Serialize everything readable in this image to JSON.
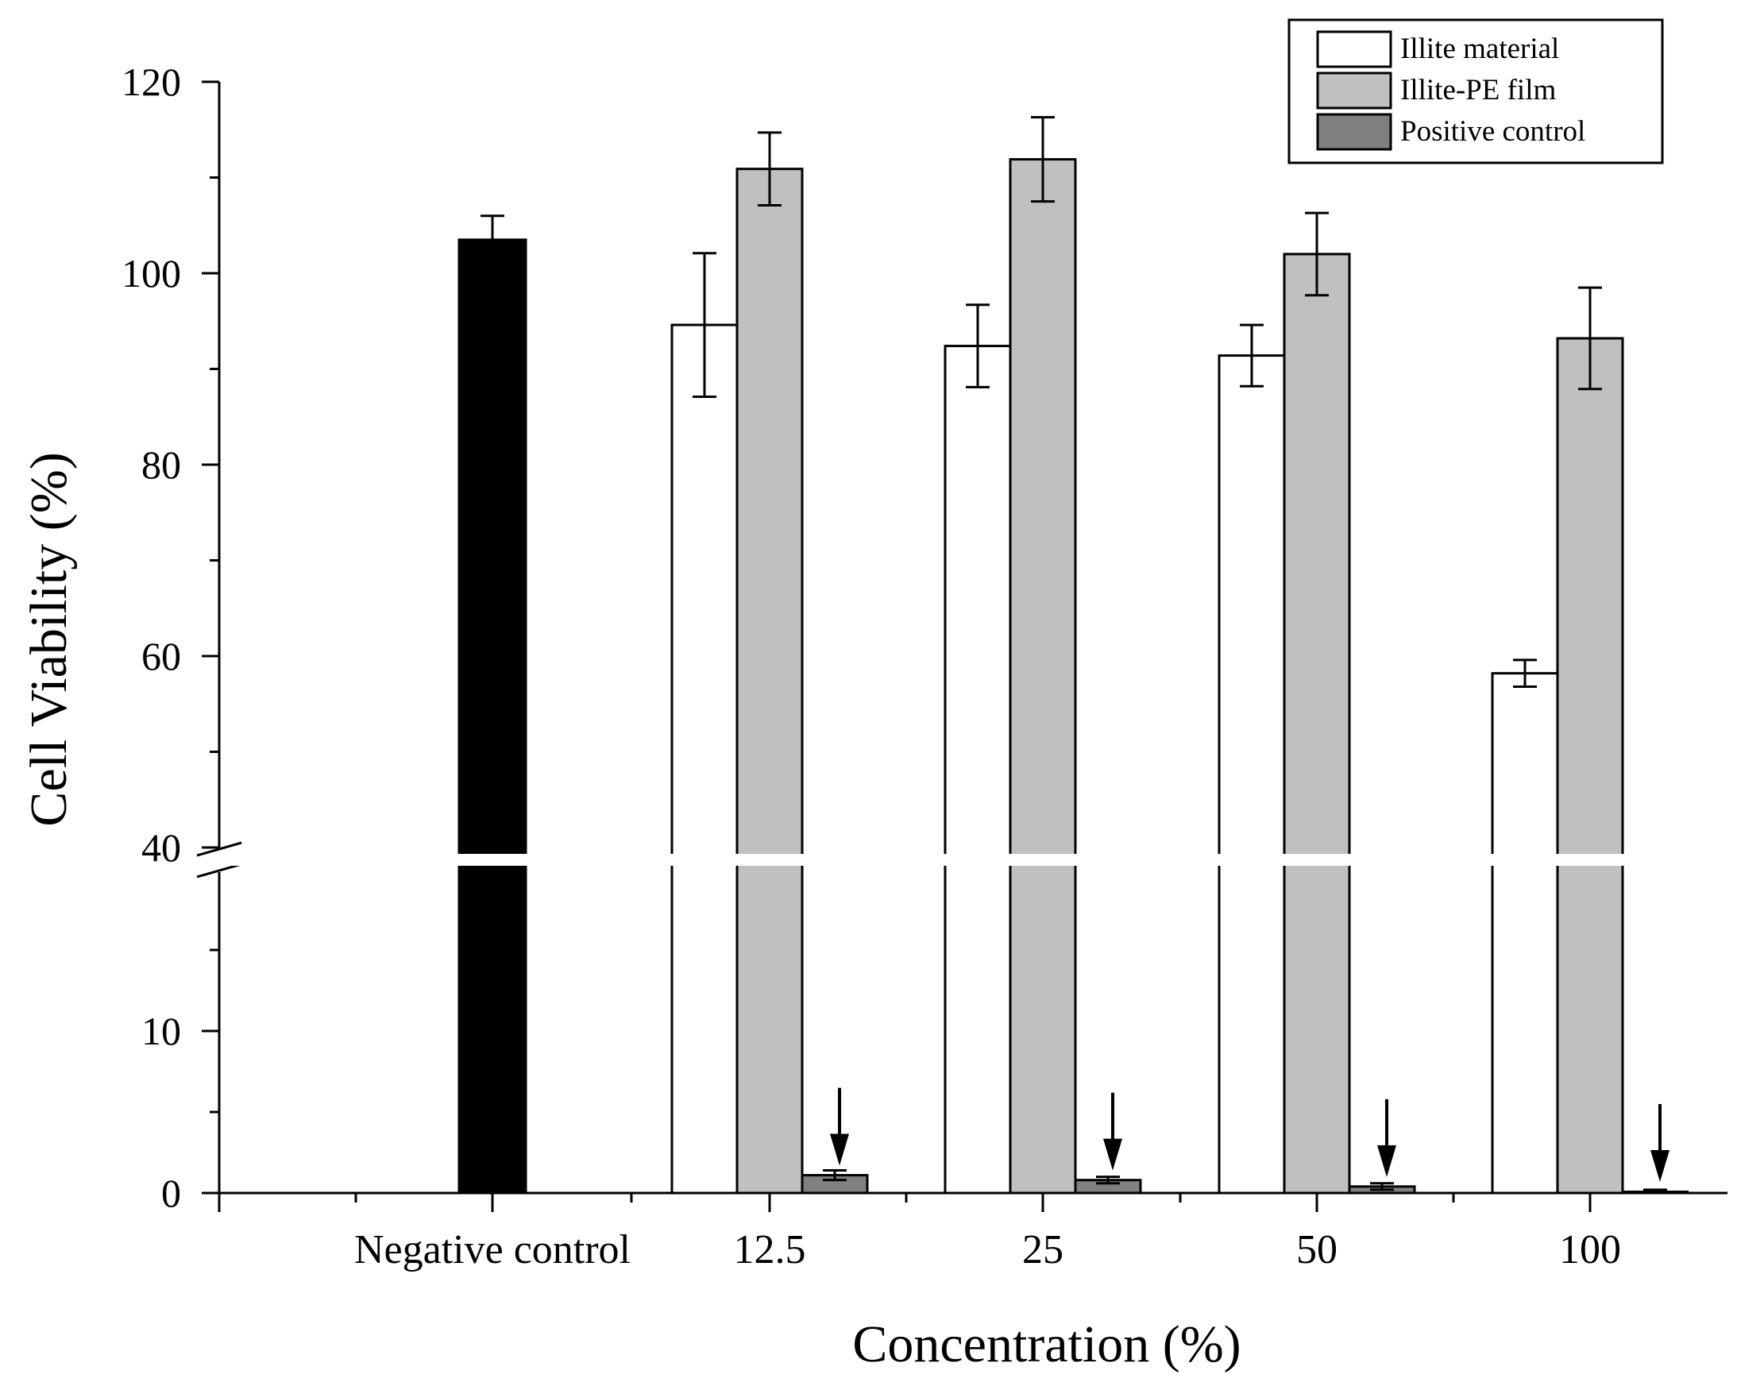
{
  "chart_data": {
    "type": "bar",
    "title": "",
    "xlabel": "Concentration (%)",
    "ylabel": "Cell Viability (%)",
    "axis_break": {
      "from": 20,
      "to": 40
    },
    "y_lower_range": [
      0,
      20
    ],
    "y_upper_range": [
      40,
      120
    ],
    "y_ticks": [
      0,
      10,
      40,
      60,
      80,
      100,
      120
    ],
    "y_tick_labels": [
      "0",
      "10",
      "40",
      "60",
      "80",
      "100",
      "120"
    ],
    "categories": [
      "Negative control",
      "12.5",
      "25",
      "50",
      "100"
    ],
    "negative_control": {
      "value": 103.5,
      "error": 2.5,
      "color": "#000000"
    },
    "series": [
      {
        "name": "Illite material",
        "color": "#ffffff",
        "values": [
          null,
          94.6,
          92.4,
          91.4,
          58.2
        ],
        "errors": [
          null,
          7.5,
          4.3,
          3.2,
          1.4
        ]
      },
      {
        "name": "Illite-PE film",
        "color": "#c0c0c0",
        "values": [
          null,
          110.9,
          111.9,
          102.0,
          93.2
        ],
        "errors": [
          null,
          3.8,
          4.4,
          4.3,
          5.3
        ]
      },
      {
        "name": "Positive control",
        "color": "#808080",
        "values": [
          null,
          1.1,
          0.8,
          0.4,
          0.1
        ],
        "errors": [
          null,
          0.3,
          0.2,
          0.2,
          0.1
        ]
      }
    ],
    "annotations": "arrows pointing down at positive control bars",
    "legend_position": "top-right"
  }
}
